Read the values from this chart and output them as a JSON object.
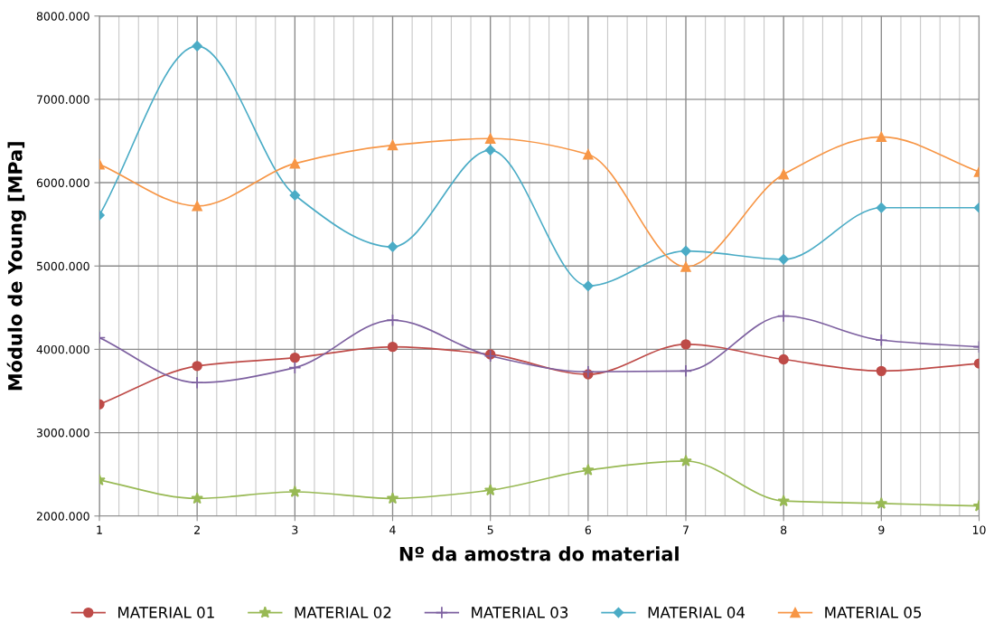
{
  "chart_data": {
    "type": "line",
    "xlabel": "Nº da amostra do material",
    "ylabel": "Módulo de Young [MPa]",
    "x": [
      1,
      2,
      3,
      4,
      5,
      6,
      7,
      8,
      9,
      10
    ],
    "xlim": [
      1,
      10
    ],
    "xticks": [
      1,
      2,
      3,
      4,
      5,
      6,
      7,
      8,
      9,
      10
    ],
    "ylim": [
      2000,
      8000
    ],
    "yticks": [
      {
        "value": 2000,
        "label": "2000.000"
      },
      {
        "value": 3000,
        "label": "3000.000"
      },
      {
        "value": 4000,
        "label": "4000.000"
      },
      {
        "value": 5000,
        "label": "5000.000"
      },
      {
        "value": 6000,
        "label": "6000.000"
      },
      {
        "value": 7000,
        "label": "7000.000"
      },
      {
        "value": 8000,
        "label": "8000.000"
      }
    ],
    "grid": true,
    "legend": "bottom",
    "line_style": "solid",
    "series": [
      {
        "name": "MATERIAL 01",
        "color": "#be4b48",
        "marker": "circle",
        "values": [
          3340,
          3800,
          3900,
          4030,
          3940,
          3700,
          4060,
          3880,
          3740,
          3830
        ]
      },
      {
        "name": "MATERIAL 02",
        "color": "#98b954",
        "marker": "star",
        "values": [
          2430,
          2210,
          2290,
          2210,
          2310,
          2550,
          2660,
          2180,
          2150,
          2120
        ]
      },
      {
        "name": "MATERIAL 03",
        "color": "#7d60a0",
        "marker": "cross",
        "values": [
          4140,
          3600,
          3780,
          4350,
          3920,
          3730,
          3740,
          4400,
          4110,
          4030
        ]
      },
      {
        "name": "MATERIAL 04",
        "color": "#4bacc6",
        "marker": "diamond",
        "values": [
          5610,
          7640,
          5850,
          5230,
          6390,
          4760,
          5180,
          5080,
          5700,
          5700
        ]
      },
      {
        "name": "MATERIAL 05",
        "color": "#f79646",
        "marker": "triangle",
        "values": [
          6220,
          5720,
          6230,
          6450,
          6530,
          6340,
          4990,
          6100,
          6550,
          6130
        ]
      }
    ]
  }
}
